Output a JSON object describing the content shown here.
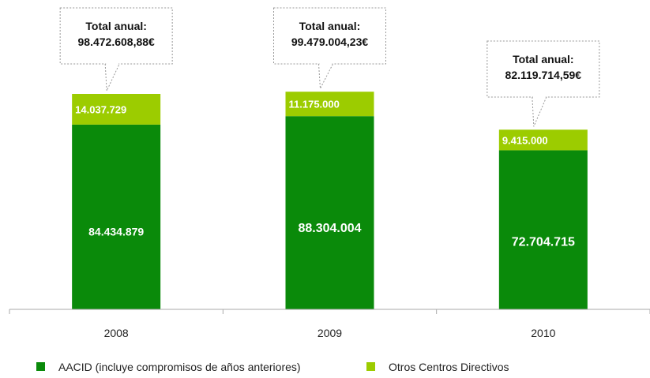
{
  "chart_data": {
    "type": "bar",
    "stacked": true,
    "categories": [
      "2008",
      "2009",
      "2010"
    ],
    "series": [
      {
        "name": "AACID (incluye compromisos de años anteriores)",
        "color": "#0a8a0a",
        "values": [
          84434879,
          88304004,
          72704715
        ],
        "labels": [
          "84.434.879",
          "88.304.004",
          "72.704.715"
        ]
      },
      {
        "name": "Otros Centros Directivos",
        "color": "#9ccc00",
        "values": [
          14037729,
          11175000,
          9415000
        ],
        "labels": [
          "14.037.729",
          "11.175.000",
          "9.415.000"
        ]
      }
    ],
    "annotations": [
      {
        "category": "2008",
        "title": "Total anual:",
        "value": "98.472.608,88€"
      },
      {
        "category": "2009",
        "title": "Total anual:",
        "value": "99.479.004,23€"
      },
      {
        "category": "2010",
        "title": "Total anual:",
        "value": "82.119.714,59€"
      }
    ],
    "ylim": [
      0,
      117000000
    ],
    "grid": false,
    "legend_position": "bottom"
  }
}
